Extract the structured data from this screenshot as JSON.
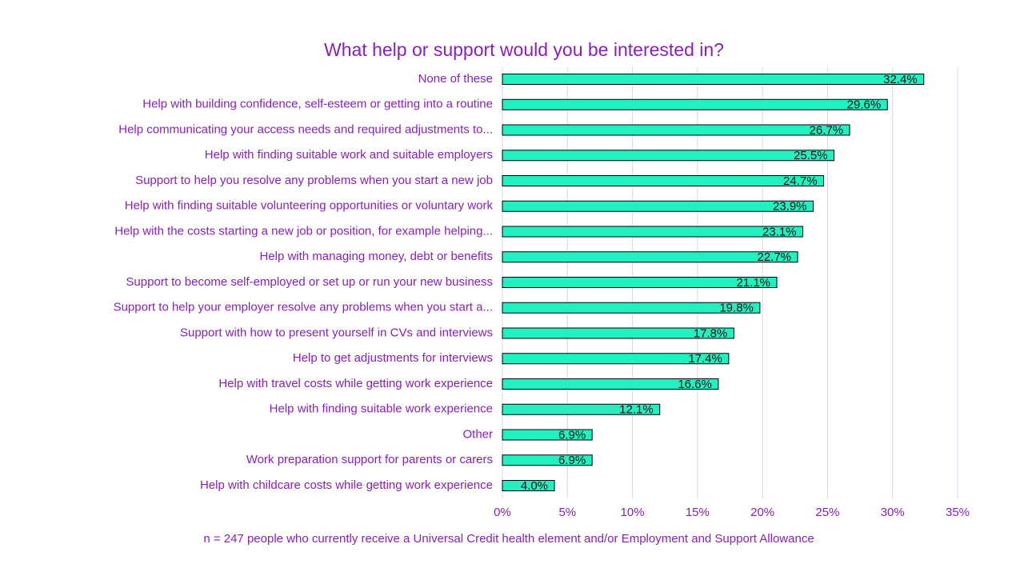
{
  "chart_data": {
    "type": "bar",
    "orientation": "horizontal",
    "title": "What help or support would you be interested in?",
    "footnote": "n = 247 people who currently receive a Universal Credit health element and/or Employment and Support Allowance",
    "categories": [
      "None of these",
      "Help with building confidence, self-esteem or getting into a routine",
      "Help communicating your access needs and required adjustments to...",
      "Help with finding suitable work and suitable employers",
      "Support to help you resolve any problems when you start a new job",
      "Help with finding suitable volunteering opportunities or voluntary work",
      "Help with the costs starting a new job or position, for example helping...",
      "Help with managing money, debt or benefits",
      "Support to become self-employed or set up or run your new business",
      "Support to help your employer resolve any problems when you start a...",
      "Support with how to present yourself in CVs and interviews",
      "Help to get adjustments for interviews",
      "Help with travel costs while getting work experience",
      "Help with finding suitable work experience",
      "Other",
      "Work preparation support for parents or carers",
      "Help with childcare costs while getting work experience"
    ],
    "values": [
      32.4,
      29.6,
      26.7,
      25.5,
      24.7,
      23.9,
      23.1,
      22.7,
      21.1,
      19.8,
      17.8,
      17.4,
      16.6,
      12.1,
      6.9,
      6.9,
      4.0
    ],
    "value_labels": [
      "32.4%",
      "29.6%",
      "26.7%",
      "25.5%",
      "24.7%",
      "23.9%",
      "23.1%",
      "22.7%",
      "21.1%",
      "19.8%",
      "17.8%",
      "17.4%",
      "16.6%",
      "12.1%",
      "6.9%",
      "6.9%",
      "4.0%"
    ],
    "color": "#22f0c0",
    "xlim": [
      0,
      35
    ],
    "xticks": [
      {
        "value": 0,
        "label": "0%"
      },
      {
        "value": 5,
        "label": "5%"
      },
      {
        "value": 10,
        "label": "10%"
      },
      {
        "value": 15,
        "label": "15%"
      },
      {
        "value": 20,
        "label": "20%"
      },
      {
        "value": 25,
        "label": "25%"
      },
      {
        "value": 30,
        "label": "30%"
      },
      {
        "value": 35,
        "label": "35%"
      }
    ],
    "grid": true
  }
}
